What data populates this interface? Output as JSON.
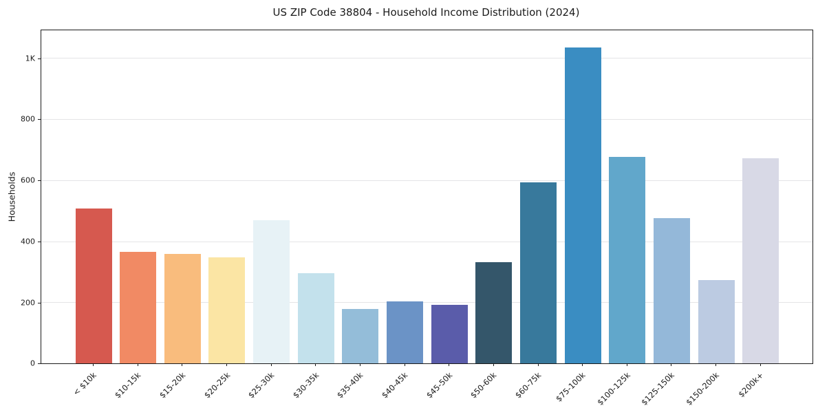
{
  "title": "US ZIP Code 38804 - Household Income Distribution (2024)",
  "colors": {
    "background": "#ffffff",
    "spine": "#1a1a1a",
    "grid": "#e4e4e6",
    "text": "#1a1a1a"
  },
  "chart_data": {
    "type": "bar",
    "title": "US ZIP Code 38804 - Household Income Distribution (2024)",
    "xlabel": "",
    "ylabel": "Households",
    "categories": [
      "< $10k",
      "$10-15k",
      "$15-20k",
      "$20-25k",
      "$25-30k",
      "$30-35k",
      "$35-40k",
      "$40-45k",
      "$45-50k",
      "$50-60k",
      "$60-75k",
      "$75-100k",
      "$100-125k",
      "$125-150k",
      "$150-200k",
      "$200k+"
    ],
    "values": [
      507,
      365,
      358,
      348,
      470,
      296,
      178,
      203,
      192,
      332,
      593,
      1034,
      677,
      476,
      273,
      672
    ],
    "bar_colors": [
      "#d6594f",
      "#f18a64",
      "#f9bc7d",
      "#fbe5a4",
      "#e7f2f6",
      "#c3e1ec",
      "#94bdd9",
      "#6b93c6",
      "#5a5caa",
      "#34566a",
      "#38799c",
      "#3a8dc2",
      "#61a7cb",
      "#94b8d9",
      "#bccbe2",
      "#d8d9e6"
    ],
    "ylim": [
      0,
      1091
    ],
    "yticks": [
      {
        "value": 0,
        "label": "0"
      },
      {
        "value": 200,
        "label": "200"
      },
      {
        "value": 400,
        "label": "400"
      },
      {
        "value": 600,
        "label": "600"
      },
      {
        "value": 800,
        "label": "800"
      },
      {
        "value": 1000,
        "label": "1K"
      }
    ],
    "grid": "horizontal",
    "legend": "none"
  }
}
